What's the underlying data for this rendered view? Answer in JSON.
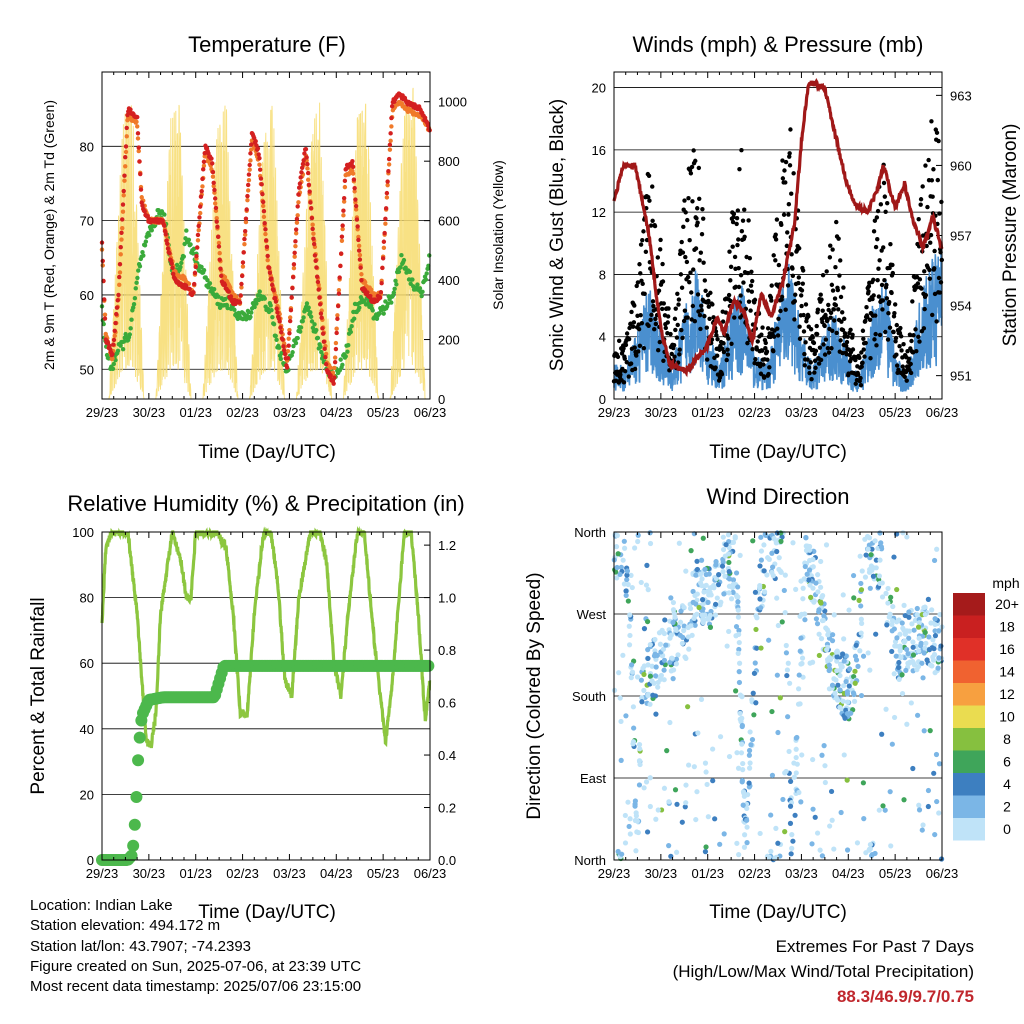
{
  "panels": {
    "temperature": {
      "title": "Temperature (F)",
      "ylabel_left": "2m & 9m T (Red, Orange) & 2m Td (Green)",
      "ylabel_right": "Solar Insolation (Yellow)",
      "xlabel": "Time (Day/UTC)"
    },
    "winds": {
      "title": "Winds (mph) & Pressure (mb)",
      "ylabel_left": "Sonic Wind & Gust (Blue, Black)",
      "ylabel_right": "Station Pressure (Maroon)",
      "xlabel": "Time (Day/UTC)"
    },
    "humidity": {
      "title": "Relative Humidity (%) & Precipitation (in)",
      "ylabel_left": "Percent & Total Rainfall",
      "xlabel": "Time (Day/UTC)"
    },
    "direction": {
      "title": "Wind Direction",
      "ylabel_left": "Direction (Colored By Speed)",
      "xlabel": "Time (Day/UTC)",
      "legend_title": "mph"
    }
  },
  "colors": {
    "temp_2m": "#d42020",
    "temp_9m": "#f07a2a",
    "dewpoint": "#3aaa3a",
    "solar": "#f7dc6f",
    "wind": "#4a8fcf",
    "gust": "#000000",
    "pressure": "#a01818",
    "rh": "#8cc63f",
    "precip": "#4cb84c"
  },
  "chart_data": [
    {
      "type": "line",
      "panel": "temperature",
      "x_ticks": [
        "29/23",
        "30/23",
        "01/23",
        "02/23",
        "03/23",
        "04/23",
        "05/23",
        "06/23"
      ],
      "x_range_days": [
        0,
        7
      ],
      "ylim_left": [
        46,
        90
      ],
      "yticks_left": [
        50,
        60,
        70,
        80
      ],
      "ylim_right": [
        0,
        1100
      ],
      "yticks_right": [
        0,
        200,
        400,
        600,
        800,
        1000
      ],
      "grid": true,
      "series": [
        {
          "axis": "left",
          "x": [
            0,
            0.08,
            0.22,
            0.35,
            0.55,
            0.75,
            0.85,
            1.0,
            1.3,
            1.55,
            1.8,
            1.95,
            2.2,
            2.35,
            2.55,
            2.8,
            2.95,
            3.2,
            3.35,
            3.55,
            3.8,
            3.95,
            4.2,
            4.35,
            4.55,
            4.8,
            4.95,
            5.2,
            5.35,
            5.55,
            5.8,
            5.95,
            6.2,
            6.35,
            6.5,
            6.8,
            7.0
          ],
          "values": [
            67,
            54,
            52,
            60,
            85,
            84,
            72,
            70,
            70,
            62,
            61,
            60,
            80,
            78,
            62,
            59,
            59,
            82,
            79,
            64,
            56,
            50,
            74,
            80,
            65,
            50,
            48,
            77,
            78,
            61,
            59,
            60,
            86,
            87,
            86,
            85,
            82
          ]
        },
        {
          "axis": "left",
          "x": [
            0,
            0.08,
            0.22,
            0.35,
            0.55,
            0.75,
            0.85,
            1.0,
            1.3,
            1.55,
            1.8,
            1.95,
            2.2,
            2.35,
            2.55,
            2.8,
            2.95,
            3.2,
            3.35,
            3.55,
            3.8,
            3.95,
            4.2,
            4.35,
            4.55,
            4.8,
            4.95,
            5.2,
            5.35,
            5.55,
            5.8,
            5.95,
            6.2,
            6.35,
            6.5,
            6.8,
            7.0
          ],
          "values": [
            66,
            55,
            51,
            59,
            84,
            83,
            73,
            70,
            70,
            63,
            62,
            60,
            79,
            77,
            63,
            60,
            59,
            81,
            78,
            64,
            57,
            51,
            73,
            79,
            66,
            51,
            49,
            76,
            77,
            62,
            60,
            60,
            85,
            86,
            85,
            84,
            82
          ]
        },
        {
          "axis": "left",
          "x": [
            0,
            0.08,
            0.2,
            0.3,
            0.6,
            0.8,
            1.0,
            1.2,
            1.35,
            1.5,
            1.7,
            1.8,
            2.0,
            2.3,
            2.5,
            2.7,
            2.95,
            3.1,
            3.35,
            3.6,
            3.75,
            3.95,
            4.2,
            4.35,
            4.55,
            4.8,
            4.95,
            5.2,
            5.4,
            5.6,
            5.8,
            6.0,
            6.2,
            6.4,
            6.6,
            6.8,
            7.0
          ],
          "values": [
            58,
            53,
            50,
            52,
            55,
            64,
            68,
            71,
            70,
            63,
            64,
            68,
            65,
            61,
            59,
            59,
            57,
            57,
            60,
            58,
            53,
            50,
            55,
            59,
            55,
            50,
            49,
            52,
            58,
            60,
            57,
            58,
            60,
            65,
            62,
            60,
            65
          ]
        },
        {
          "axis": "right",
          "x": [
            0.15,
            0.45,
            0.65,
            0.9,
            1.15,
            1.45,
            1.65,
            1.9,
            2.15,
            2.45,
            2.65,
            2.9,
            3.15,
            3.45,
            3.65,
            3.9,
            4.15,
            4.45,
            4.65,
            4.9,
            5.15,
            5.45,
            5.65,
            5.9,
            6.15,
            6.45,
            6.65,
            6.9
          ],
          "values": [
            0,
            950,
            1000,
            0,
            0,
            950,
            1000,
            0,
            0,
            900,
            1000,
            0,
            0,
            880,
            1000,
            0,
            0,
            900,
            1000,
            0,
            0,
            950,
            1000,
            0,
            0,
            1000,
            1050,
            0
          ]
        }
      ]
    },
    {
      "type": "scatter",
      "panel": "winds",
      "x_ticks": [
        "29/23",
        "30/23",
        "01/23",
        "02/23",
        "03/23",
        "04/23",
        "05/23",
        "06/23"
      ],
      "x_range_days": [
        0,
        7
      ],
      "ylim_left": [
        0,
        21
      ],
      "yticks_left": [
        0,
        4,
        8,
        12,
        16,
        20
      ],
      "ylim_right": [
        950,
        964
      ],
      "yticks_right": [
        951,
        954,
        957,
        960,
        963
      ],
      "grid": true,
      "series": [
        {
          "axis": "left",
          "x": [
            0,
            0.25,
            0.5,
            0.75,
            1.0,
            1.25,
            1.5,
            1.75,
            2.0,
            2.25,
            2.5,
            2.75,
            3.0,
            3.25,
            3.5,
            3.75,
            4.0,
            4.25,
            4.5,
            4.75,
            5.0,
            5.25,
            5.5,
            5.75,
            6.0,
            6.25,
            6.5,
            6.75,
            7.0
          ],
          "values": [
            1.5,
            1.5,
            3,
            5,
            3,
            1.5,
            4,
            6,
            3,
            1.5,
            4,
            5,
            2,
            1.5,
            4,
            6,
            3,
            1.5,
            3,
            4,
            2,
            1,
            4,
            6,
            2,
            1,
            4,
            6,
            7
          ]
        },
        {
          "axis": "left",
          "x": [
            0,
            0.25,
            0.5,
            0.75,
            1.0,
            1.25,
            1.5,
            1.75,
            2.0,
            2.25,
            2.5,
            2.75,
            3.0,
            3.25,
            3.5,
            3.75,
            4.0,
            4.25,
            4.5,
            4.75,
            5.0,
            5.25,
            5.5,
            5.75,
            6.0,
            6.25,
            6.5,
            6.75,
            7.0
          ],
          "values": [
            3,
            3,
            6,
            12,
            8,
            3,
            10,
            14,
            6,
            3,
            9,
            13,
            5,
            3,
            10,
            15,
            7,
            3,
            7,
            9,
            4,
            2,
            8,
            12,
            5,
            2,
            9,
            14,
            14
          ]
        },
        {
          "axis": "right",
          "x": [
            0,
            0.2,
            0.45,
            0.6,
            0.75,
            0.9,
            1.05,
            1.2,
            1.4,
            1.55,
            1.8,
            2.0,
            2.2,
            2.35,
            2.55,
            2.75,
            2.95,
            3.15,
            3.35,
            3.6,
            3.85,
            4.0,
            4.15,
            4.3,
            4.5,
            4.7,
            4.85,
            5.0,
            5.2,
            5.4,
            5.6,
            5.75,
            6.0,
            6.2,
            6.4,
            6.6,
            6.8,
            7.0
          ],
          "values": [
            958.5,
            960,
            960,
            958.5,
            957,
            954.5,
            952.5,
            951.5,
            951.3,
            951.2,
            951.8,
            952.3,
            953.5,
            952.8,
            954.2,
            953.8,
            952.5,
            954.5,
            953.5,
            955,
            957.5,
            961,
            963.5,
            963.5,
            963.3,
            961.5,
            960.2,
            959,
            958.2,
            958,
            958.8,
            960,
            958.2,
            959.2,
            957.5,
            956.5,
            957.8,
            956.5
          ]
        }
      ]
    },
    {
      "type": "line",
      "panel": "humidity",
      "x_ticks": [
        "29/23",
        "30/23",
        "01/23",
        "02/23",
        "03/23",
        "04/23",
        "05/23",
        "06/23"
      ],
      "x_range_days": [
        0,
        7
      ],
      "ylim_left": [
        0,
        100
      ],
      "yticks_left": [
        0,
        20,
        40,
        60,
        80,
        100
      ],
      "ylim_right": [
        0,
        1.25
      ],
      "yticks_right": [
        "0.0",
        "0.2",
        "0.4",
        "0.6",
        "0.8",
        "1.0",
        "1.2"
      ],
      "grid": true,
      "series": [
        {
          "axis": "left",
          "x": [
            0,
            0.08,
            0.2,
            0.35,
            0.55,
            0.75,
            0.85,
            0.95,
            1.05,
            1.15,
            1.25,
            1.5,
            1.7,
            1.8,
            1.9,
            2.0,
            2.2,
            2.45,
            2.65,
            2.8,
            2.95,
            3.1,
            3.25,
            3.45,
            3.6,
            3.75,
            3.9,
            4.05,
            4.2,
            4.45,
            4.65,
            4.8,
            4.95,
            5.1,
            5.25,
            5.45,
            5.6,
            5.75,
            5.9,
            6.05,
            6.2,
            6.45,
            6.6,
            6.75,
            6.9,
            7.0
          ],
          "values": [
            72,
            95,
            100,
            100,
            100,
            75,
            55,
            36,
            35,
            45,
            75,
            100,
            90,
            80,
            80,
            100,
            100,
            100,
            95,
            75,
            45,
            44,
            75,
            100,
            100,
            85,
            55,
            50,
            80,
            100,
            100,
            90,
            60,
            50,
            75,
            100,
            100,
            75,
            55,
            36,
            55,
            100,
            100,
            75,
            42,
            55
          ]
        },
        {
          "axis": "right",
          "x": [
            0,
            0.3,
            0.55,
            0.65,
            0.72,
            0.78,
            0.85,
            1.0,
            1.3,
            1.6,
            1.7,
            1.9,
            2.3,
            2.4,
            2.6,
            3.0,
            5.0,
            7.0
          ],
          "values": [
            0,
            0,
            0,
            0.02,
            0.18,
            0.42,
            0.55,
            0.61,
            0.62,
            0.62,
            0.62,
            0.62,
            0.62,
            0.62,
            0.74,
            0.74,
            0.74,
            0.74
          ]
        }
      ]
    },
    {
      "type": "scatter",
      "panel": "direction",
      "x_ticks": [
        "29/23",
        "30/23",
        "01/23",
        "02/23",
        "03/23",
        "04/23",
        "05/23",
        "06/23"
      ],
      "x_range_days": [
        0,
        7
      ],
      "yticks_left": [
        "North",
        "East",
        "South",
        "West",
        "North"
      ],
      "ylim_deg": [
        0,
        360
      ],
      "grid": true,
      "legend": {
        "title": "mph",
        "labels": [
          "20+",
          "18",
          "16",
          "14",
          "12",
          "10",
          "8",
          "6",
          "4",
          "2",
          "0"
        ],
        "colors": [
          "#a51b1b",
          "#c92020",
          "#e03028",
          "#f06230",
          "#f7a040",
          "#eadc50",
          "#86c03f",
          "#3fa55a",
          "#3d7fc0",
          "#7bb6e6",
          "#bfe3f8"
        ]
      },
      "series": [
        {
          "x": [
            0.1,
            0.3,
            0.5,
            0.6,
            0.7,
            0.9,
            1.2,
            1.5,
            1.8,
            2.1,
            2.3,
            2.6,
            2.8,
            3.1,
            3.3,
            3.6,
            3.8,
            4.1,
            4.3,
            4.6,
            4.8,
            5.1,
            5.4,
            5.6,
            6.0,
            6.3,
            6.5,
            6.8
          ],
          "values": [
            340,
            320,
            10,
            190,
            200,
            215,
            240,
            250,
            300,
            280,
            320,
            330,
            20,
            300,
            340,
            350,
            15,
            330,
            300,
            220,
            200,
            180,
            350,
            340,
            230,
            240,
            245,
            240
          ]
        }
      ]
    }
  ],
  "station": {
    "location": "Location: Indian Lake",
    "elevation": "Station elevation: 494.172 m",
    "latlon": "Station lat/lon: 43.7907; -74.2393",
    "created": "Figure created on Sun, 2025-07-06, at 23:39 UTC",
    "recent": "Most recent data timestamp: 2025/07/06 23:15:00"
  },
  "extremes": {
    "title": "Extremes For Past 7 Days",
    "subtitle": "(High/Low/Max Wind/Total Precipitation)",
    "value": "88.3/46.9/9.7/0.75"
  }
}
